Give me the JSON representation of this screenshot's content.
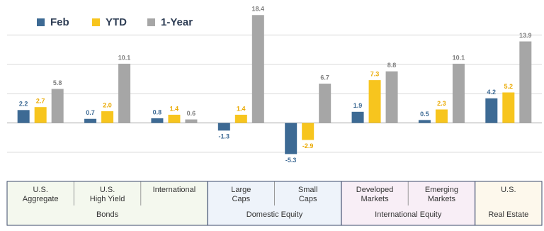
{
  "chart_data": {
    "type": "bar",
    "categories": [
      [
        "U.S.",
        "Aggregate"
      ],
      [
        "U.S.",
        "High Yield"
      ],
      [
        "International"
      ],
      [
        "Large",
        "Caps"
      ],
      [
        "Small",
        "Caps"
      ],
      [
        "Developed",
        "Markets"
      ],
      [
        "Emerging",
        "Markets"
      ],
      [
        "U.S."
      ]
    ],
    "groups": [
      {
        "name": "Bonds",
        "size": 3,
        "color": "#f4f8ee"
      },
      {
        "name": "Domestic Equity",
        "size": 2,
        "color": "#eef3fa"
      },
      {
        "name": "International Equity",
        "size": 2,
        "color": "#f8eef6"
      },
      {
        "name": "Real Estate",
        "size": 1,
        "color": "#fdf8ec"
      }
    ],
    "series": [
      {
        "name": "Feb",
        "color": "#3d6a94",
        "label_color": "#3d6a94",
        "values": [
          2.2,
          0.7,
          0.8,
          -1.3,
          -5.3,
          1.9,
          0.5,
          4.2
        ],
        "value_labels": [
          "2.2",
          "0.7",
          "0.8",
          "-1.3",
          "-5.3",
          "1.9",
          "0.5",
          "4.2"
        ]
      },
      {
        "name": "YTD",
        "color": "#f7c51e",
        "label_color": "#eaa900",
        "values": [
          2.7,
          2.0,
          1.4,
          1.4,
          -2.9,
          7.3,
          2.3,
          5.2
        ],
        "value_labels": [
          "2.7",
          "2.0",
          "1.4",
          "1.4",
          "-2.9",
          "7.3",
          "2.3",
          "5.2"
        ]
      },
      {
        "name": "1-Year",
        "color": "#a6a6a6",
        "label_color": "#7f7f7f",
        "values": [
          5.8,
          10.1,
          0.6,
          18.4,
          6.7,
          8.8,
          10.1,
          13.9
        ],
        "value_labels": [
          "5.8",
          "10.1",
          "0.6",
          "18.4",
          "6.7",
          "8.8",
          "10.1",
          "13.9"
        ]
      }
    ],
    "ylim": [
      -9,
      20
    ],
    "yticks": [
      -5,
      0,
      5,
      10,
      15
    ],
    "grid": true
  }
}
